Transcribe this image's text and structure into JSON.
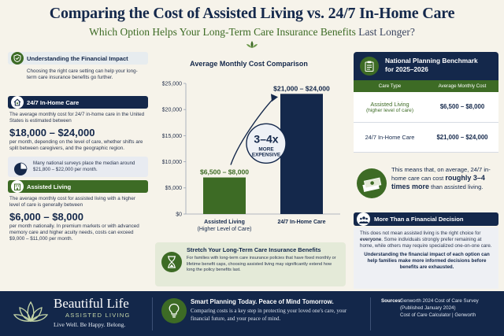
{
  "header": {
    "title": "Comparing the Cost of Assisted Living vs. 24/7 In-Home Care",
    "subtitle_main": "Which Option Helps Your Long-Term Care Insurance Benefits",
    "subtitle_tail": "Last Longer?"
  },
  "left": {
    "impact": {
      "title": "Understanding the Financial Impact",
      "body": "Choosing the right care setting can help your long-term care insurance benefits go further."
    },
    "in_home": {
      "title": "24/7 In-Home Care",
      "intro": "The average monthly cost for 24/7 in-home care in the United States is estimated between",
      "range": "$18,000 – $24,000",
      "detail": "per month, depending on the level of care, whether shifts are split between caregivers, and the geographic region.",
      "note": "Many national surveys place the median around $21,800 – $22,000 per month."
    },
    "assisted": {
      "title": "Assisted Living",
      "intro": "The average monthly cost for assisted living with a higher level of care is generally between",
      "range": "$6,000 – $8,000",
      "detail": "per month nationally. In premium markets or with advanced memory care and higher acuity needs, costs can exceed $9,000 – $11,000 per month."
    }
  },
  "chart_data": {
    "type": "bar",
    "title": "Average Monthly Cost Comparison",
    "categories": [
      "Assisted Living\n(Higher Level of Care)",
      "24/7 In-Home Care"
    ],
    "category_lines": [
      [
        "Assisted Living",
        "(Higher Level of Care)"
      ],
      [
        "24/7 In-Home Care"
      ]
    ],
    "values": [
      7000,
      23000
    ],
    "data_labels": [
      "$6,500 – $8,000",
      "$21,000 – $24,000"
    ],
    "bar_colors": [
      "#3d6b25",
      "#14284b"
    ],
    "ylim": [
      0,
      25000
    ],
    "yticks": [
      0,
      5000,
      10000,
      15000,
      20000,
      25000
    ],
    "ytick_labels": [
      "$0",
      "$5,000",
      "$10,000",
      "$15,000",
      "$20,000",
      "$25,000"
    ],
    "annotation": {
      "big": "3–4x",
      "small_1": "MORE",
      "small_2": "EXPENSIVE"
    },
    "grid": false
  },
  "stretch": {
    "title": "Stretch Your Long-Term Care Insurance Benefits",
    "body": "For families with long-term care insurance policies that have fixed monthly or lifetime benefit caps, choosing assisted living may significantly extend how long the policy benefits last."
  },
  "benchmark": {
    "title_1": "National Planning Benchmark",
    "title_2": "for 2025–2026",
    "col_type": "Care Type",
    "col_cost": "Average Monthly Cost",
    "rows": [
      {
        "type_1": "Assisted Living",
        "type_2": "(higher level of care)",
        "cost": "$6,500 – $8,000"
      },
      {
        "type_1": "24/7 In-Home Care",
        "type_2": "",
        "cost": "$21,000 – $24,000"
      }
    ]
  },
  "means": {
    "pre": "This means that, on average, 24/7 in-home care can cost",
    "strong": "roughly 3–4 times more",
    "post": "than assisted living."
  },
  "more": {
    "title": "More Than a Financial Decision",
    "body_pre": "This does not mean assisted living is the right choice for",
    "body_strong": "everyone",
    "body_post": ". Some individuals strongly prefer remaining at home, while others may require specialized one-on-one care.",
    "benefit": "Understanding the financial impact of each option can help families make more informed decisions before benefits are exhausted."
  },
  "footer": {
    "brand": "Beautiful Life",
    "brand_sub": "ASSISTED LIVING",
    "tagline": "Live Well. Be Happy. Belong.",
    "smart_title": "Smart Planning Today. Peace of Mind Tomorrow.",
    "smart_body": "Comparing costs is a key step in protecting your loved one's care, your financial future, and your peace of mind.",
    "sources_label": "Sources:",
    "sources": [
      "Genworth 2024 Cost of Care Survey",
      "(Published January 2024)",
      "Cost of Care Calculator | Genworth"
    ]
  },
  "colors": {
    "navy": "#14284b",
    "green": "#3d6b25",
    "cream": "#f6f3ea"
  }
}
